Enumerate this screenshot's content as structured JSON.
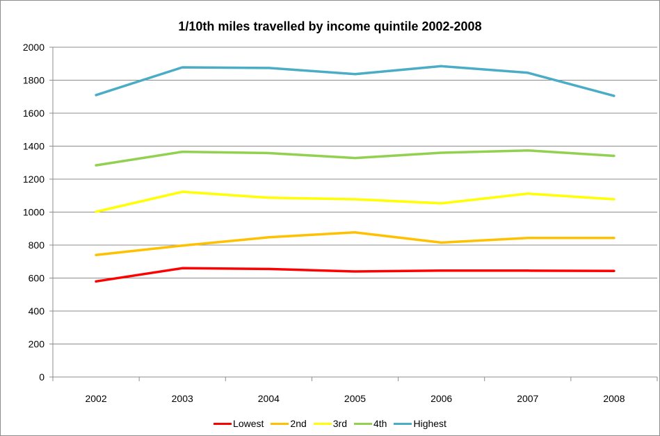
{
  "chart_data": {
    "type": "line",
    "title": "1/10th miles travelled by income quintile 2002-2008",
    "xlabel": "",
    "ylabel": "",
    "categories": [
      "2002",
      "2003",
      "2004",
      "2005",
      "2006",
      "2007",
      "2008"
    ],
    "ylim": [
      0,
      2000
    ],
    "yticks": [
      0,
      200,
      400,
      600,
      800,
      1000,
      1200,
      1400,
      1600,
      1800,
      2000
    ],
    "grid": true,
    "legend_position": "bottom",
    "series": [
      {
        "name": "Lowest",
        "color": "#ff0000",
        "values": [
          580,
          660,
          655,
          640,
          645,
          645,
          643
        ]
      },
      {
        "name": "2nd",
        "color": "#ffc000",
        "values": [
          740,
          797,
          847,
          877,
          815,
          843,
          843
        ]
      },
      {
        "name": "3rd",
        "color": "#ffff00",
        "values": [
          1002,
          1123,
          1087,
          1078,
          1053,
          1112,
          1078
        ]
      },
      {
        "name": "4th",
        "color": "#92d050",
        "values": [
          1284,
          1366,
          1358,
          1328,
          1360,
          1374,
          1341
        ]
      },
      {
        "name": "Highest",
        "color": "#4bacc6",
        "values": [
          1710,
          1878,
          1874,
          1837,
          1885,
          1845,
          1705
        ]
      }
    ]
  }
}
